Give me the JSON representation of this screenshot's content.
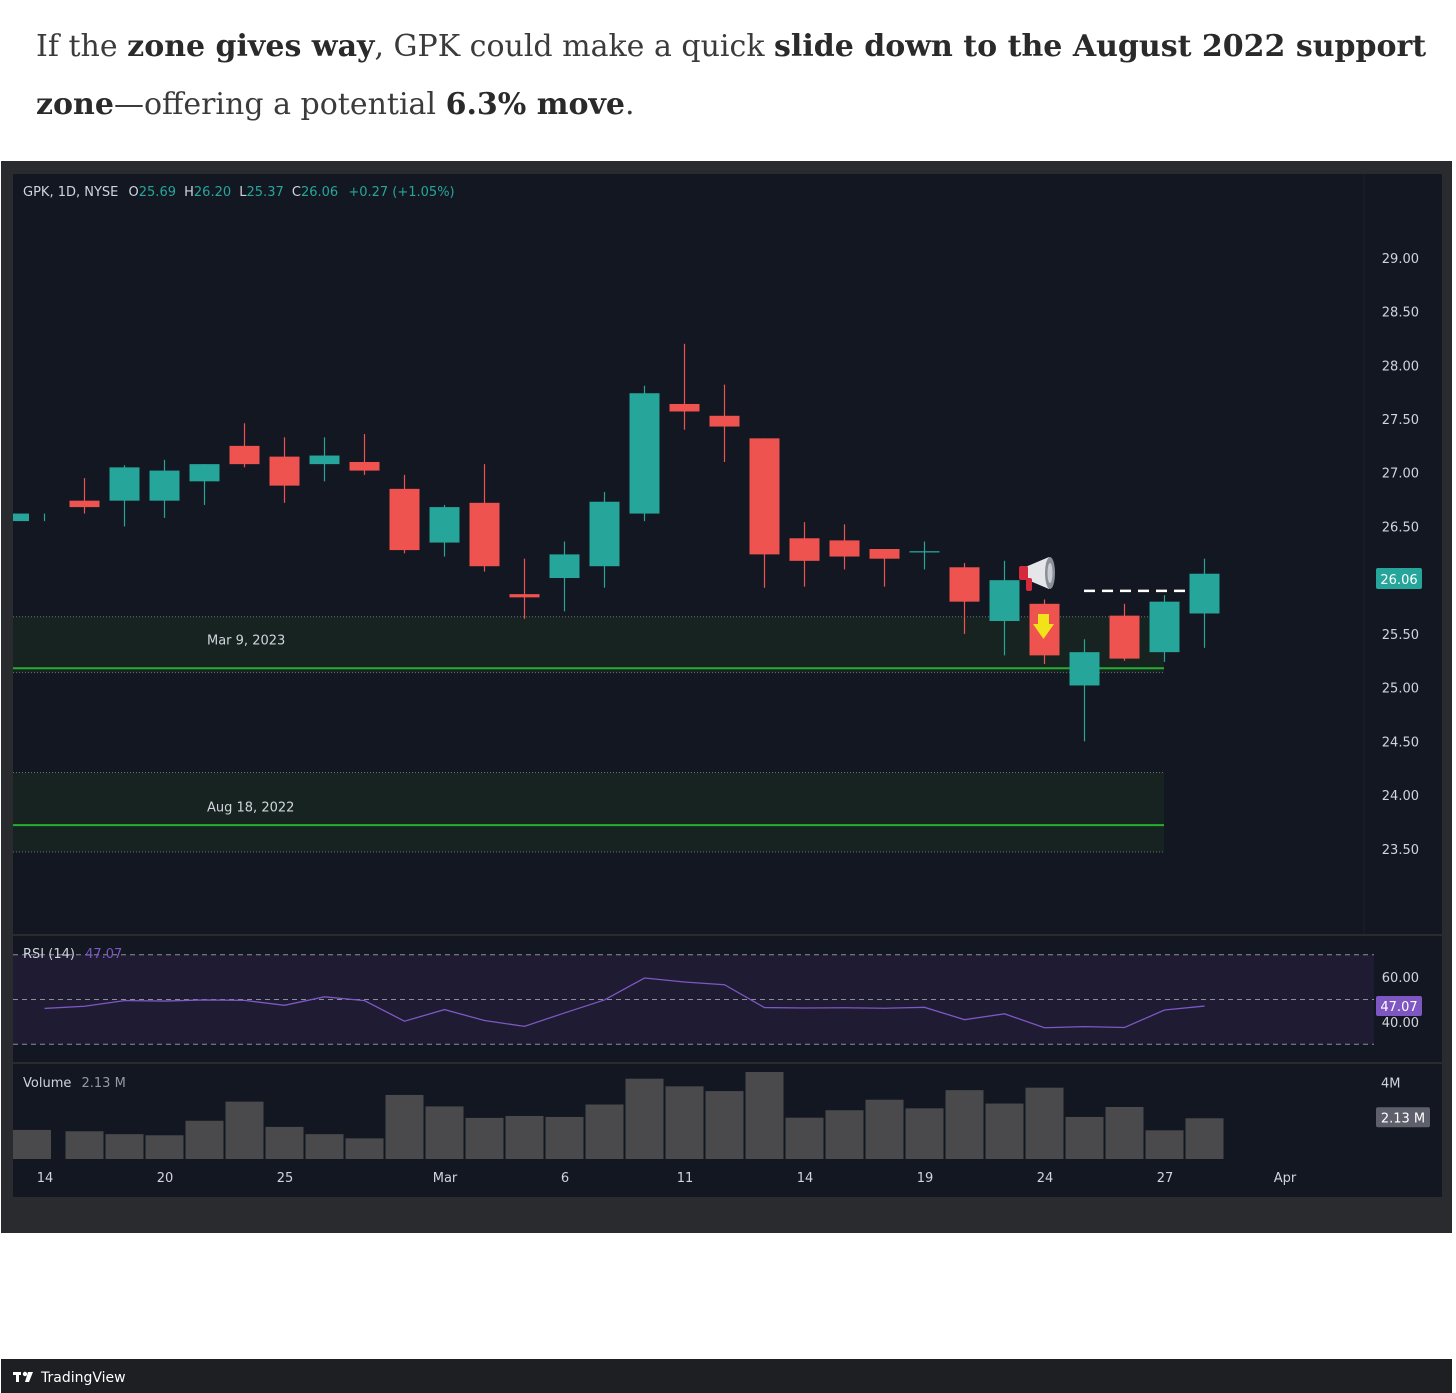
{
  "intro": {
    "s1": "If the ",
    "b1": "zone gives way",
    "s2": ", GPK could make a quick ",
    "b2": "slide down to the August 2022 support zone",
    "s3": "—offering a potential ",
    "b3": "6.3% move",
    "s4": "."
  },
  "header": {
    "symbol": "GPK, 1D, NYSE",
    "o_label": "O",
    "o_value": "25.69",
    "h_label": "H",
    "h_value": "26.20",
    "l_label": "L",
    "l_value": "25.37",
    "c_label": "C",
    "c_value": "26.06",
    "change": "+0.27 (+1.05%)"
  },
  "brand": "TradingView",
  "colors": {
    "up": "#26a69a",
    "down": "#ef5350",
    "background": "#131722",
    "frame": "#2a2b2e",
    "support_line": "#23b02e",
    "rsi": "#7e57c2",
    "rsi_band": "#1e1b33",
    "volume": "#4a4a4d",
    "zone": "#172321"
  },
  "chart_data": [
    {
      "type": "candlestick",
      "title": "GPK, 1D, NYSE",
      "ylim": [
        23.2,
        29.25
      ],
      "yticks": [
        "29.00",
        "28.50",
        "28.00",
        "27.50",
        "27.00",
        "26.50",
        "26.00",
        "25.50",
        "25.00",
        "24.50",
        "24.00",
        "23.50"
      ],
      "xticks": [
        {
          "label": "14",
          "i": 0
        },
        {
          "label": "20",
          "i": 3
        },
        {
          "label": "25",
          "i": 6
        },
        {
          "label": "Mar",
          "i": 10
        },
        {
          "label": "6",
          "i": 13
        },
        {
          "label": "11",
          "i": 16
        },
        {
          "label": "14",
          "i": 19
        },
        {
          "label": "19",
          "i": 22
        },
        {
          "label": "24",
          "i": 25
        },
        {
          "label": "27",
          "i": 28
        },
        {
          "label": "Apr",
          "i": 31
        }
      ],
      "last_price": "26.06",
      "candles": [
        {
          "o": 26.55,
          "h": 26.62,
          "l": 26.55,
          "c": 26.62
        },
        {
          "o": 26.74,
          "h": 26.95,
          "l": 26.62,
          "c": 26.68
        },
        {
          "o": 26.74,
          "h": 27.07,
          "l": 26.5,
          "c": 27.05
        },
        {
          "o": 26.74,
          "h": 27.12,
          "l": 26.58,
          "c": 27.02
        },
        {
          "o": 26.92,
          "h": 27.08,
          "l": 26.7,
          "c": 27.08
        },
        {
          "o": 27.25,
          "h": 27.46,
          "l": 27.05,
          "c": 27.08
        },
        {
          "o": 27.15,
          "h": 27.33,
          "l": 26.72,
          "c": 26.88
        },
        {
          "o": 27.08,
          "h": 27.33,
          "l": 26.92,
          "c": 27.16
        },
        {
          "o": 27.1,
          "h": 27.36,
          "l": 26.98,
          "c": 27.02
        },
        {
          "o": 26.85,
          "h": 26.98,
          "l": 26.25,
          "c": 26.28
        },
        {
          "o": 26.35,
          "h": 26.7,
          "l": 26.22,
          "c": 26.68
        },
        {
          "o": 26.72,
          "h": 27.08,
          "l": 26.08,
          "c": 26.13
        },
        {
          "o": 25.87,
          "h": 26.2,
          "l": 25.64,
          "c": 25.84
        },
        {
          "o": 26.02,
          "h": 26.36,
          "l": 25.71,
          "c": 26.24
        },
        {
          "o": 26.13,
          "h": 26.82,
          "l": 25.93,
          "c": 26.73
        },
        {
          "o": 26.62,
          "h": 27.81,
          "l": 26.55,
          "c": 27.74
        },
        {
          "o": 27.64,
          "h": 28.2,
          "l": 27.4,
          "c": 27.57
        },
        {
          "o": 27.53,
          "h": 27.82,
          "l": 27.1,
          "c": 27.43
        },
        {
          "o": 27.32,
          "h": 27.32,
          "l": 25.93,
          "c": 26.24
        },
        {
          "o": 26.39,
          "h": 26.54,
          "l": 25.94,
          "c": 26.18
        },
        {
          "o": 26.37,
          "h": 26.52,
          "l": 26.1,
          "c": 26.22
        },
        {
          "o": 26.29,
          "h": 26.29,
          "l": 25.94,
          "c": 26.2
        },
        {
          "o": 26.27,
          "h": 26.36,
          "l": 26.1,
          "c": 26.27
        },
        {
          "o": 26.12,
          "h": 26.16,
          "l": 25.5,
          "c": 25.8
        },
        {
          "o": 25.62,
          "h": 26.18,
          "l": 25.3,
          "c": 26.0
        },
        {
          "o": 25.78,
          "h": 25.82,
          "l": 25.22,
          "c": 25.3
        },
        {
          "o": 25.02,
          "h": 25.45,
          "l": 24.5,
          "c": 25.33
        },
        {
          "o": 25.67,
          "h": 25.78,
          "l": 25.25,
          "c": 25.27
        },
        {
          "o": 25.33,
          "h": 25.86,
          "l": 25.24,
          "c": 25.8
        },
        {
          "o": 25.69,
          "h": 26.2,
          "l": 25.37,
          "c": 26.06
        }
      ],
      "zones": [
        {
          "label": "Mar 9, 2023",
          "top": 25.66,
          "bottom": 25.14,
          "line": 25.18
        },
        {
          "label": "Aug 18, 2022",
          "top": 24.21,
          "bottom": 23.47,
          "line": 23.72
        }
      ],
      "resistance_dash": 25.9
    },
    {
      "type": "line",
      "title": "RSI (14)",
      "value": "47.07",
      "ylim": [
        27,
        73
      ],
      "yticks": [
        "60.00",
        "40.00"
      ],
      "bands": [
        30,
        50,
        70
      ],
      "values": [
        46.0,
        47.0,
        49.5,
        49.3,
        49.8,
        49.6,
        47.4,
        51.2,
        49.5,
        40.3,
        45.5,
        40.6,
        38.0,
        44.0,
        49.8,
        59.6,
        57.8,
        56.6,
        46.4,
        46.2,
        46.3,
        46.1,
        46.5,
        41.0,
        43.6,
        37.4,
        37.9,
        37.5,
        45.3,
        47.07
      ]
    },
    {
      "type": "bar",
      "title": "Volume",
      "value": "2.13 M",
      "ylim": [
        0,
        4.55
      ],
      "yticks": [
        "4M"
      ],
      "last_value": "2.13 M",
      "values": [
        1.52,
        1.45,
        1.3,
        1.24,
        2.0,
        3.0,
        1.68,
        1.3,
        1.08,
        3.35,
        2.75,
        2.15,
        2.25,
        2.2,
        2.85,
        4.2,
        3.8,
        3.55,
        4.55,
        2.16,
        2.55,
        3.1,
        2.65,
        3.6,
        2.9,
        3.73,
        2.2,
        2.72,
        1.5,
        2.13
      ]
    }
  ]
}
